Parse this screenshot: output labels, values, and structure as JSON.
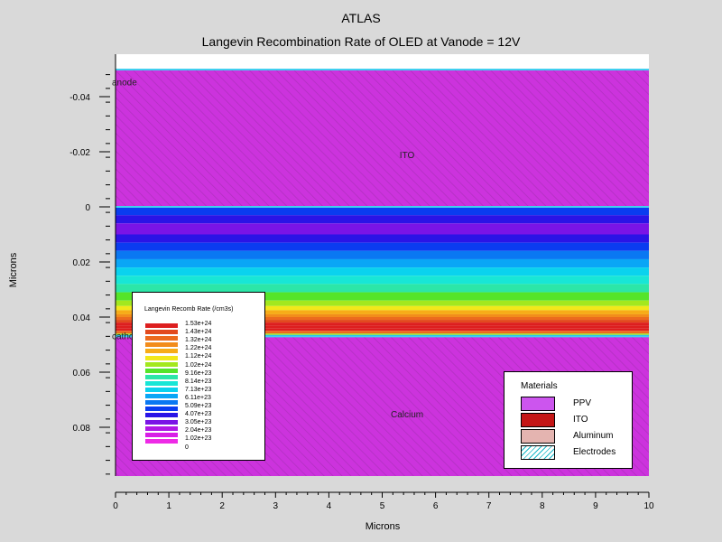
{
  "chart_data": {
    "type": "heatmap",
    "title": "ATLAS",
    "subtitle": "Langevin Recombination Rate of OLED at Vanode = 12V",
    "xlabel": "Microns",
    "ylabel": "Microns",
    "xlim": [
      0,
      10
    ],
    "ylim": [
      -0.05,
      0.098
    ],
    "y_inverted": true,
    "x_ticks": [
      "0",
      "1",
      "2",
      "3",
      "4",
      "5",
      "6",
      "7",
      "8",
      "9",
      "10"
    ],
    "y_ticks": [
      {
        "value": -0.04,
        "label": "-0.04"
      },
      {
        "value": -0.02,
        "label": "-0.02"
      },
      {
        "value": 0,
        "label": "0"
      },
      {
        "value": 0.02,
        "label": "0.02"
      },
      {
        "value": 0.04,
        "label": "0.04"
      },
      {
        "value": 0.06,
        "label": "0.06"
      },
      {
        "value": 0.08,
        "label": "0.08"
      }
    ],
    "regions": [
      {
        "label": "ITO",
        "material": "ITO",
        "y0": -0.05,
        "y1": 0.0,
        "label_x": 5.5,
        "label_y": -0.019
      },
      {
        "label": "",
        "material": "PPV",
        "y0": 0.0,
        "y1": 0.047
      },
      {
        "label": "Calcium",
        "material": "Calcium",
        "y0": 0.047,
        "y1": 0.098,
        "label_x": 5.5,
        "label_y": 0.075
      }
    ],
    "electrodes": [
      {
        "label": "anode",
        "y": -0.05,
        "label_x": 0.0,
        "label_y": -0.046
      },
      {
        "label": "cathode",
        "y": 0.047,
        "label_x": 0.0,
        "label_y": 0.046
      }
    ],
    "rate_profile": [
      {
        "y": 0.0,
        "level": 2
      },
      {
        "y": 0.003,
        "level": 1
      },
      {
        "y": 0.006,
        "level": 0
      },
      {
        "y": 0.01,
        "level": 1
      },
      {
        "y": 0.013,
        "level": 2
      },
      {
        "y": 0.016,
        "level": 3
      },
      {
        "y": 0.019,
        "level": 4
      },
      {
        "y": 0.022,
        "level": 5
      },
      {
        "y": 0.025,
        "level": 6
      },
      {
        "y": 0.028,
        "level": 7
      },
      {
        "y": 0.031,
        "level": 8
      },
      {
        "y": 0.034,
        "level": 9
      },
      {
        "y": 0.036,
        "level": 10
      },
      {
        "y": 0.0375,
        "level": 11
      },
      {
        "y": 0.039,
        "level": 12
      },
      {
        "y": 0.04,
        "level": 13
      },
      {
        "y": 0.041,
        "level": 14
      },
      {
        "y": 0.042,
        "level": 15
      },
      {
        "y": 0.043,
        "level": 16
      },
      {
        "y": 0.044,
        "level": 17
      },
      {
        "y": 0.045,
        "level": 13
      },
      {
        "y": 0.046,
        "level": 9
      },
      {
        "y": 0.0465,
        "level": 4
      }
    ],
    "colorbar": {
      "title": "Langevin Recomb Rate (/cm3s)",
      "levels": [
        {
          "label": "1.53e+24",
          "color": "#dd1f1f"
        },
        {
          "label": "1.43e+24",
          "color": "#e24a1e"
        },
        {
          "label": "1.32e+24",
          "color": "#ec6b1d"
        },
        {
          "label": "1.22e+24",
          "color": "#f28c1b"
        },
        {
          "label": "1.12e+24",
          "color": "#f7ac18"
        },
        {
          "label": "1.02e+24",
          "color": "#f2e81a"
        },
        {
          "label": "9.16e+23",
          "color": "#a3e81e"
        },
        {
          "label": "8.14e+23",
          "color": "#55e42a"
        },
        {
          "label": "7.13e+23",
          "color": "#2ce6a8"
        },
        {
          "label": "6.11e+23",
          "color": "#18e6d6"
        },
        {
          "label": "5.09e+23",
          "color": "#0ad2ee"
        },
        {
          "label": "4.07e+23",
          "color": "#0aa6f6"
        },
        {
          "label": "3.05e+23",
          "color": "#0a78f2"
        },
        {
          "label": "2.04e+23",
          "color": "#0a3cf0"
        },
        {
          "label": "1.02e+23",
          "color": "#2a14e6"
        },
        {
          "label": "0",
          "color": "#7a14e6"
        }
      ],
      "bottom_colors": [
        "#b018e6",
        "#d81ee6",
        "#ee2ae6"
      ]
    },
    "materials_legend": {
      "title": "Materials",
      "items": [
        {
          "label": "PPV",
          "color": "#cc55ee"
        },
        {
          "label": "ITO",
          "color": "#c41616"
        },
        {
          "label": "Aluminum",
          "color": "#e4b4b0"
        },
        {
          "label": "Electrodes",
          "color": "#ffffff",
          "hatch": "#16b8c8"
        }
      ]
    },
    "colors": {
      "plot_magenta": "#cc33dd",
      "hatch": "#b030c0",
      "background": "#d9d9d9"
    }
  }
}
